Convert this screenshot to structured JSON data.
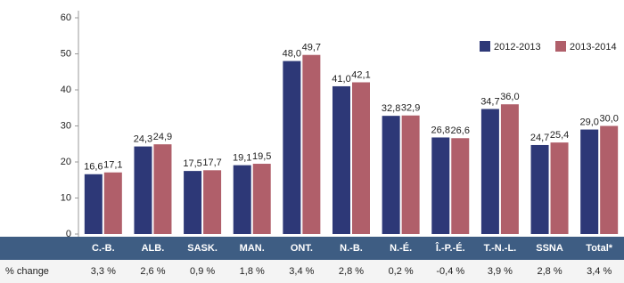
{
  "chart_data": {
    "type": "bar",
    "categories": [
      "C.-B.",
      "ALB.",
      "SASK.",
      "MAN.",
      "ONT.",
      "N.-B.",
      "N.-É.",
      "Î.-P.-É.",
      "T.-N.-L.",
      "SSNA",
      "Total*"
    ],
    "series": [
      {
        "name": "2012-2013",
        "color": "#2d3877",
        "values": [
          16.6,
          24.3,
          17.5,
          19.1,
          48.0,
          41.0,
          32.8,
          26.8,
          34.7,
          24.7,
          29.0
        ],
        "value_labels": [
          "16,6",
          "24,3",
          "17,5",
          "19,1",
          "48,0",
          "41,0",
          "32,8",
          "26,8",
          "34,7",
          "24,7",
          "29,0"
        ]
      },
      {
        "name": "2013-2014",
        "color": "#b05f6a",
        "values": [
          17.1,
          24.9,
          17.7,
          19.5,
          49.7,
          42.1,
          32.9,
          26.6,
          36.0,
          25.4,
          30.0
        ],
        "value_labels": [
          "17,1",
          "24,9",
          "17,7",
          "19,5",
          "49,7",
          "42,1",
          "32,9",
          "26,6",
          "36,0",
          "25,4",
          "30,0"
        ]
      }
    ],
    "ylim": [
      0,
      60
    ],
    "yticks": [
      0,
      10,
      20,
      30,
      40,
      50,
      60
    ],
    "legend": "top-right",
    "change_row": {
      "label": "% change",
      "cells": [
        "3,3 %",
        "2,6 %",
        "0,9 %",
        "1,8 %",
        "3,4 %",
        "2,8 %",
        "0,2 %",
        "-0,4 %",
        "3,9 %",
        "2,8 %",
        "3,4 %"
      ]
    }
  }
}
